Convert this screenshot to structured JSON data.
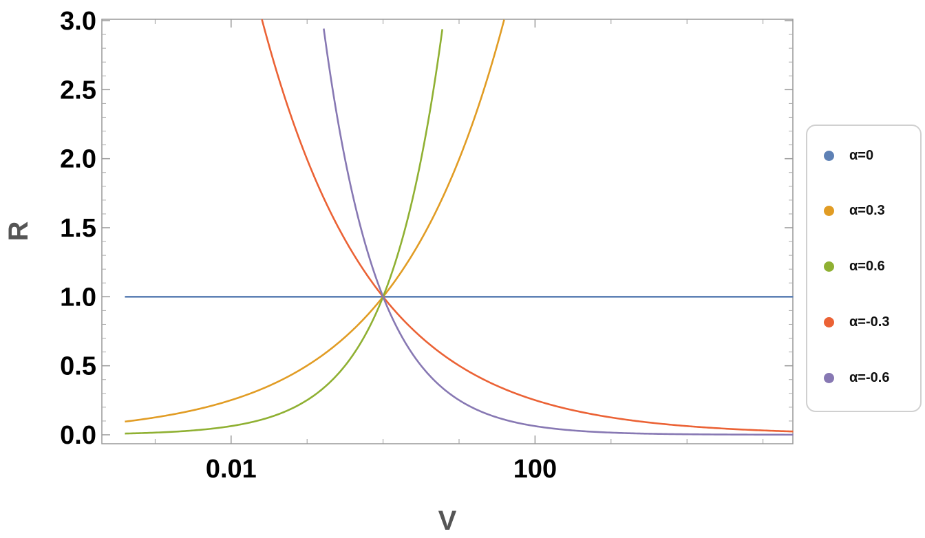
{
  "chart_data": {
    "type": "line",
    "xlabel": "V",
    "ylabel": "R",
    "xscale": "log",
    "xlim": [
      0.0001,
      1000000
    ],
    "ylim": [
      0,
      3.0
    ],
    "x_ticks": [
      {
        "value": 0.01,
        "label": "0.01"
      },
      {
        "value": 100,
        "label": "100"
      }
    ],
    "y_ticks": [
      {
        "value": 0.0,
        "label": "0.0"
      },
      {
        "value": 0.5,
        "label": "0.5"
      },
      {
        "value": 1.0,
        "label": "1.0"
      },
      {
        "value": 1.5,
        "label": "1.5"
      },
      {
        "value": 2.0,
        "label": "2.0"
      },
      {
        "value": 2.5,
        "label": "2.5"
      },
      {
        "value": 3.0,
        "label": "3.0"
      }
    ],
    "x_range": [
      0.0004,
      250000
    ],
    "legend_position": "right",
    "series": [
      {
        "name": "α=0",
        "alpha": 0,
        "color": "#5e81b5"
      },
      {
        "name": "α=0.3",
        "alpha": 0.3,
        "color": "#e19c24"
      },
      {
        "name": "α=0.6",
        "alpha": 0.6,
        "color": "#8fb032"
      },
      {
        "name": "α=-0.3",
        "alpha": -0.3,
        "color": "#eb6235"
      },
      {
        "name": "α=-0.6",
        "alpha": -0.6,
        "color": "#8778b3"
      }
    ]
  }
}
